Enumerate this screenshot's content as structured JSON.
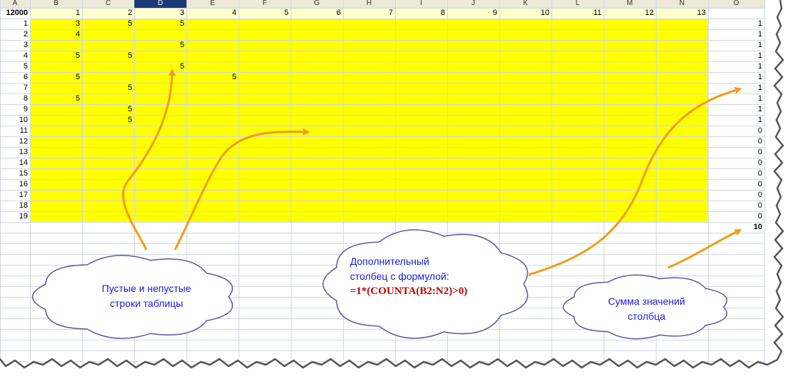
{
  "column_headers": [
    "A",
    "B",
    "C",
    "D",
    "E",
    "F",
    "G",
    "H",
    "I",
    "J",
    "K",
    "L",
    "M",
    "N",
    "O"
  ],
  "selected_column": "D",
  "first_row": {
    "a": "12000",
    "values": [
      "1",
      "2",
      "3",
      "4",
      "5",
      "6",
      "7",
      "8",
      "9",
      "10",
      "11",
      "12",
      "13"
    ]
  },
  "rows": [
    {
      "label": "1",
      "cells": {
        "B": "3",
        "C": "5",
        "D": "5"
      },
      "o": "1"
    },
    {
      "label": "2",
      "cells": {
        "B": "4"
      },
      "o": "1"
    },
    {
      "label": "3",
      "cells": {
        "D": "5"
      },
      "o": "1"
    },
    {
      "label": "4",
      "cells": {
        "B": "5",
        "C": "5"
      },
      "o": "1"
    },
    {
      "label": "5",
      "cells": {
        "D": "5"
      },
      "o": "1"
    },
    {
      "label": "6",
      "cells": {
        "B": "5",
        "E": "5"
      },
      "o": "1"
    },
    {
      "label": "7",
      "cells": {
        "C": "5"
      },
      "o": "1"
    },
    {
      "label": "8",
      "cells": {
        "B": "5"
      },
      "o": "1"
    },
    {
      "label": "9",
      "cells": {
        "C": "5"
      },
      "o": "1"
    },
    {
      "label": "10",
      "cells": {
        "C": "5"
      },
      "o": "1"
    },
    {
      "label": "11",
      "cells": {},
      "o": "0"
    },
    {
      "label": "12",
      "cells": {},
      "o": "0"
    },
    {
      "label": "13",
      "cells": {},
      "o": "0"
    },
    {
      "label": "14",
      "cells": {},
      "o": "0"
    },
    {
      "label": "15",
      "cells": {},
      "o": "0"
    },
    {
      "label": "16",
      "cells": {},
      "o": "0"
    },
    {
      "label": "17",
      "cells": {},
      "o": "0"
    },
    {
      "label": "18",
      "cells": {},
      "o": "0"
    },
    {
      "label": "19",
      "cells": {},
      "o": "0"
    }
  ],
  "total": "10",
  "callouts": {
    "rows": {
      "line1": "Пустые и непустые",
      "line2": "строки таблицы"
    },
    "extra_column": {
      "line1": "Дополнительный",
      "line2": "столбец с формулой:",
      "formula": "=1*(COUNTA(B2:N2)>0)"
    },
    "sum": {
      "line1": "Сумма значений",
      "line2": "столбца"
    }
  },
  "colors": {
    "yellow": "#ffff00",
    "header_bg": "#ece9d8",
    "selected_header": "#1c3a73",
    "grid": "#d0d7e5",
    "arrow": "#f39c12",
    "cloud_fill": "#ffffff",
    "cloud_stroke": "#5a5aa0",
    "callout_text": "#1a1ae0",
    "formula_text": "#c00000"
  }
}
